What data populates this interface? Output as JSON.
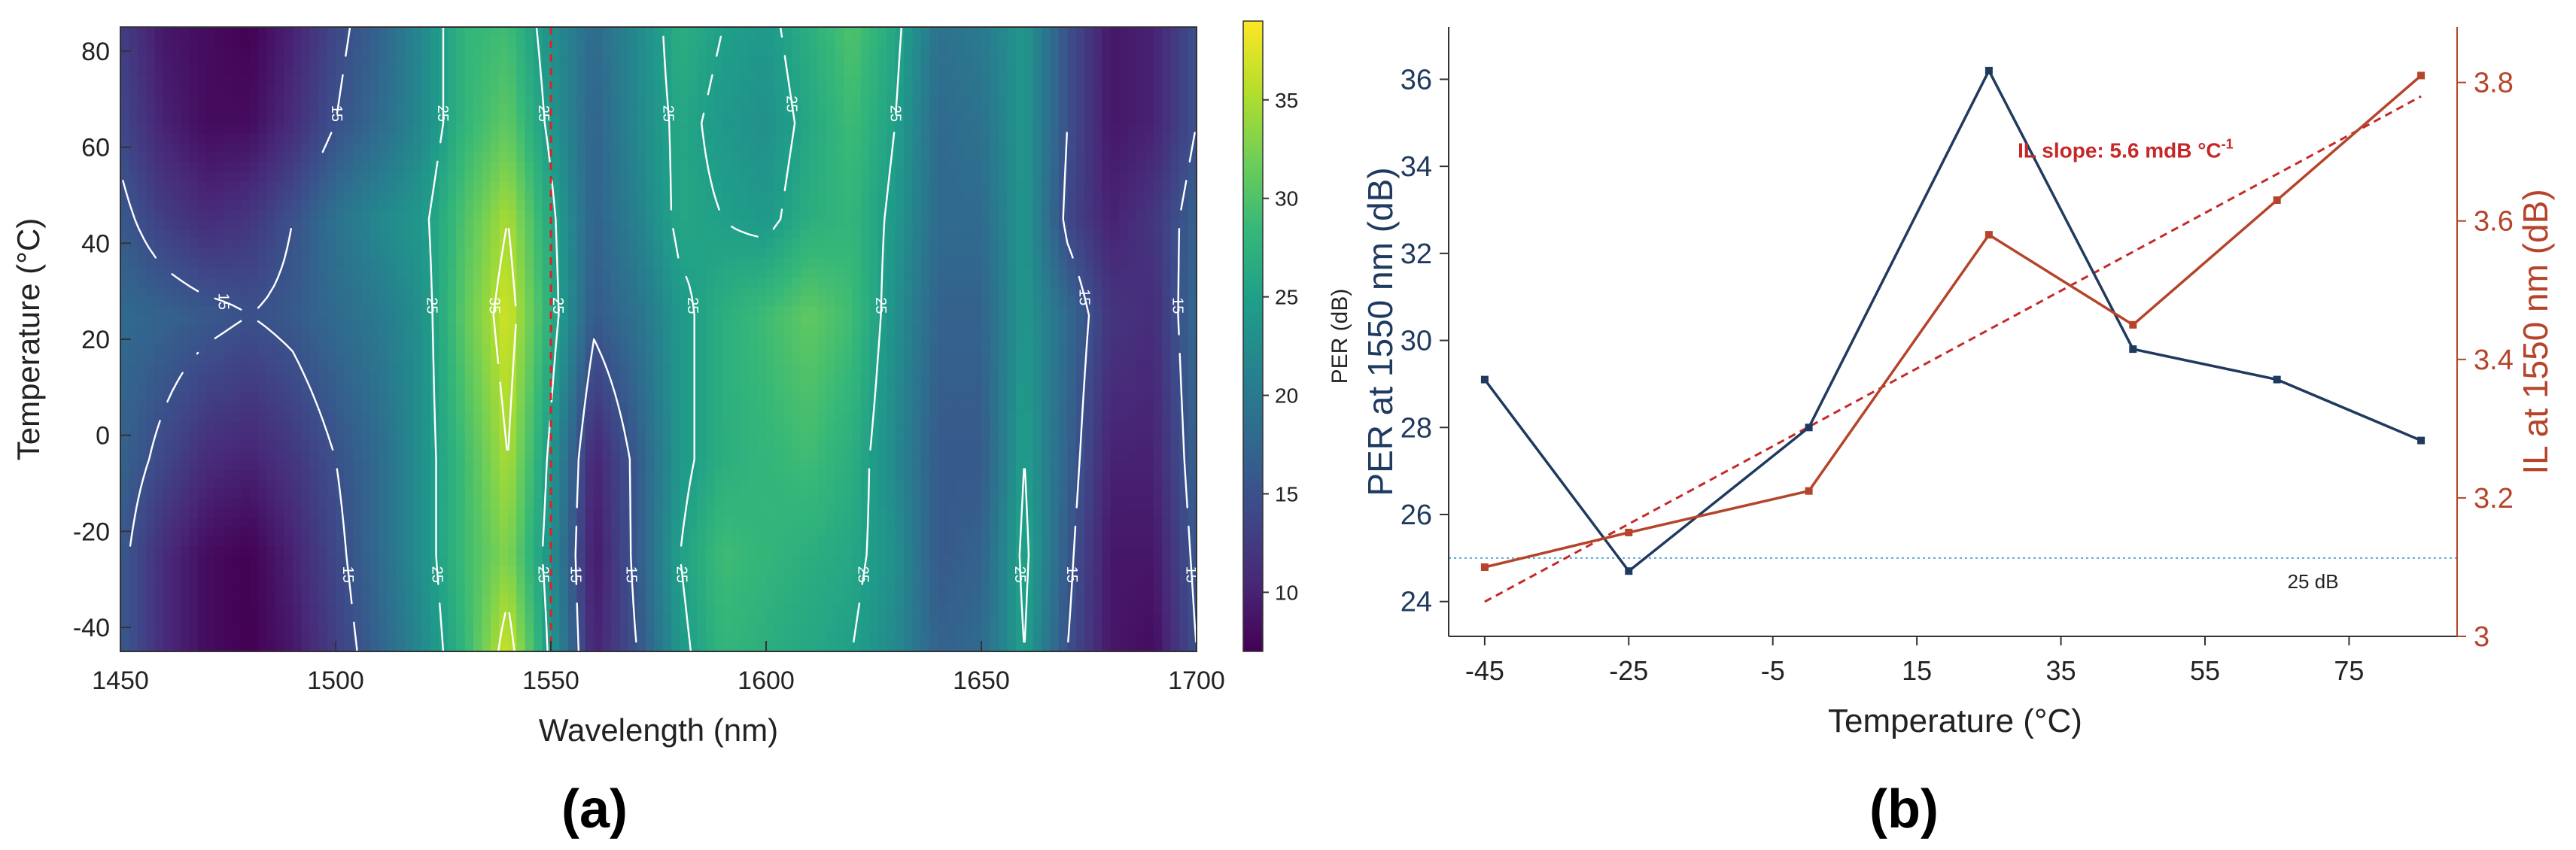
{
  "chart_data": [
    {
      "panel_label": "(a)",
      "type": "heatmap",
      "xlabel": "Wavelength (nm)",
      "ylabel": "Temperature (°C)",
      "xlim": [
        1450,
        1700
      ],
      "ylim": [
        -45,
        85
      ],
      "x_ticks": [
        1450,
        1500,
        1550,
        1600,
        1650,
        1700
      ],
      "y_ticks": [
        -40,
        -20,
        0,
        20,
        40,
        60,
        80
      ],
      "x": [
        1450,
        1460,
        1470,
        1480,
        1490,
        1500,
        1510,
        1520,
        1530,
        1540,
        1550,
        1560,
        1570,
        1580,
        1590,
        1600,
        1610,
        1620,
        1630,
        1640,
        1650,
        1660,
        1670,
        1680,
        1690,
        1700
      ],
      "y": [
        -45,
        -25,
        -5,
        25,
        45,
        65,
        85
      ],
      "z": [
        [
          16,
          11,
          8,
          7,
          9,
          13,
          17,
          22,
          28,
          37,
          24,
          10,
          15,
          24,
          28,
          27,
          26,
          25,
          22,
          17,
          18,
          25,
          15,
          9,
          8,
          15
        ],
        [
          16,
          11,
          8,
          7,
          10,
          14,
          18,
          23,
          29,
          33,
          23,
          9,
          16,
          25,
          29,
          28,
          27,
          26,
          23,
          16,
          17,
          26,
          16,
          9,
          9,
          16
        ],
        [
          17,
          14,
          11,
          10,
          12,
          15,
          18,
          23,
          29,
          35,
          24,
          10,
          16,
          24,
          27,
          28,
          29,
          27,
          22,
          16,
          16,
          25,
          17,
          10,
          10,
          17
        ],
        [
          18,
          17,
          16,
          15,
          16,
          18,
          20,
          23,
          31,
          37,
          27,
          16,
          19,
          24,
          27,
          29,
          31,
          29,
          23,
          17,
          17,
          24,
          18,
          12,
          11,
          18
        ],
        [
          16,
          13,
          11,
          12,
          15,
          19,
          22,
          24,
          30,
          35,
          26,
          17,
          21,
          26,
          25,
          24,
          27,
          28,
          24,
          18,
          18,
          24,
          14,
          10,
          12,
          17
        ],
        [
          14,
          10,
          8,
          8,
          11,
          15,
          18,
          22,
          28,
          31,
          24,
          17,
          22,
          26,
          24,
          23,
          26,
          29,
          25,
          18,
          19,
          24,
          15,
          9,
          10,
          15
        ],
        [
          13,
          9,
          8,
          7,
          10,
          14,
          17,
          22,
          28,
          29,
          23,
          18,
          22,
          27,
          25,
          24,
          27,
          30,
          26,
          19,
          20,
          24,
          15,
          9,
          10,
          15
        ]
      ],
      "contour_levels": [
        15,
        25,
        35
      ],
      "reference_line": {
        "x": 1550,
        "color": "#d62728",
        "style": "dashed"
      },
      "colorbar": {
        "label": "PER (dB)",
        "range": [
          7,
          39
        ],
        "ticks": [
          10,
          15,
          20,
          25,
          30,
          35
        ],
        "colors": [
          "#440154",
          "#482878",
          "#3e4989",
          "#31688e",
          "#26828e",
          "#1f9e89",
          "#35b779",
          "#6ece58",
          "#b5de2b",
          "#fde725"
        ]
      }
    },
    {
      "panel_label": "(b)",
      "type": "line",
      "xlabel": "Temperature (°C)",
      "x": [
        -45,
        -25,
        0,
        25,
        45,
        65,
        85
      ],
      "x_ticks": [
        -45,
        -25,
        -5,
        15,
        35,
        55,
        75
      ],
      "xlim": [
        -50,
        90
      ],
      "series": [
        {
          "axis": "left",
          "color": "#1f3a5f",
          "values": [
            29.1,
            24.7,
            28.0,
            36.2,
            29.8,
            29.1,
            27.7
          ]
        },
        {
          "axis": "right",
          "color": "#b5442a",
          "values": [
            3.1,
            3.15,
            3.21,
            3.58,
            3.45,
            3.63,
            3.81
          ]
        }
      ],
      "y_left": {
        "label": "PER at 1550 nm (dB)",
        "lim": [
          23.2,
          37.2
        ],
        "ticks": [
          24,
          26,
          28,
          30,
          32,
          34,
          36
        ],
        "color": "#1f3a5f"
      },
      "y_right": {
        "label": "IL at 1550 nm (dB)",
        "lim": [
          3.0,
          3.88
        ],
        "ticks": [
          "3",
          "3.2",
          "3.4",
          "3.6",
          "3.8"
        ],
        "color": "#b5442a"
      },
      "fit_line": {
        "axis": "right",
        "from": [
          -45,
          3.05
        ],
        "to": [
          85,
          3.78
        ],
        "color": "#c62828",
        "style": "dashed"
      },
      "reference_line": {
        "axis": "left",
        "y": 25,
        "label": "25 dB",
        "color": "#5aa9d6",
        "style": "dotted"
      },
      "annotation": {
        "text": "IL slope: 5.6 mdB °C",
        "superscript": "-1",
        "color": "#c62828",
        "x": 29,
        "y": 34.2
      }
    }
  ]
}
